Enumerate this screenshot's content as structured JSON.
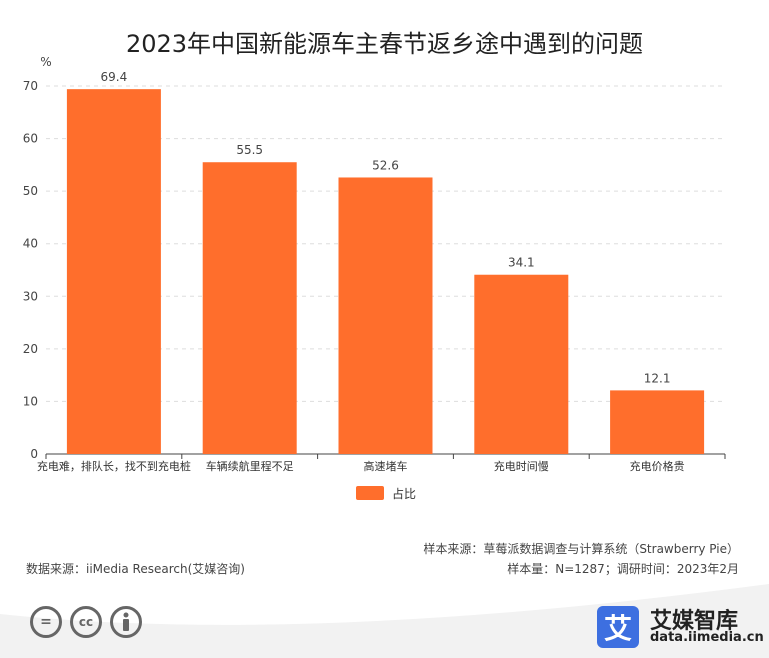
{
  "title": "2023年中国新能源车主春节返乡途中遇到的问题",
  "chart_data": {
    "type": "bar",
    "title": "2023年中国新能源车主春节返乡途中遇到的问题",
    "ylabel": "%",
    "xlabel": "",
    "ylim": [
      0,
      70
    ],
    "yticks": [
      0,
      10,
      20,
      30,
      40,
      50,
      60,
      70
    ],
    "grid": true,
    "legend_position": "bottom",
    "categories": [
      "充电难，排队长，找不到充电桩",
      "车辆续航里程不足",
      "高速堵车",
      "充电时间慢",
      "充电价格贵"
    ],
    "series": [
      {
        "name": "占比",
        "values": [
          69.4,
          55.5,
          52.6,
          34.1,
          12.1
        ],
        "color": "#ff6e2c"
      }
    ]
  },
  "legend": {
    "label": "占比",
    "color": "#ff6e2c"
  },
  "source": {
    "sample_source": "样本来源：草莓派数据调查与计算系统（Strawberry Pie）",
    "data_source": "数据来源：iiMedia Research(艾媒咨询)",
    "sample_info": "样本量：N=1287；调研时间：2023年2月"
  },
  "brand": {
    "logo_char": "艾",
    "name": "艾媒智库",
    "url": "data.iimedia.cn",
    "color": "#3d6fe0"
  },
  "license_icons": [
    "equals-icon",
    "cc-icon",
    "person-icon"
  ]
}
